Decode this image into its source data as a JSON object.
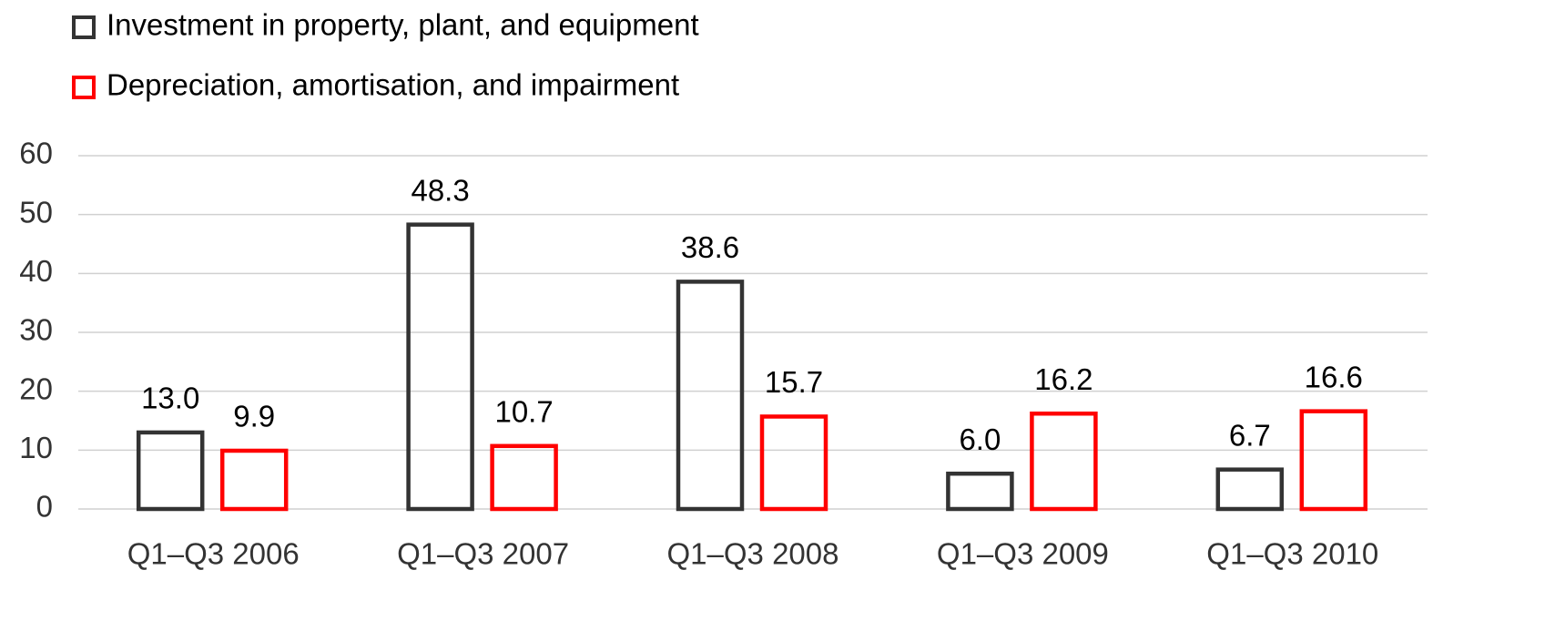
{
  "chart_data": {
    "type": "bar",
    "categories": [
      "Q1–Q3 2006",
      "Q1–Q3 2007",
      "Q1–Q3 2008",
      "Q1–Q3 2009",
      "Q1–Q3 2010"
    ],
    "series": [
      {
        "name": "Investment in property, plant, and equipment",
        "color": "#333333",
        "values": [
          13.0,
          48.3,
          38.6,
          6.0,
          6.7
        ],
        "value_labels": [
          "13.0",
          "48.3",
          "38.6",
          "6.0",
          "6.7"
        ]
      },
      {
        "name": "Depreciation, amortisation, and impairment",
        "color": "#ff0000",
        "values": [
          9.9,
          10.7,
          15.7,
          16.2,
          16.6
        ],
        "value_labels": [
          "9.9",
          "10.7",
          "15.7",
          "16.2",
          "16.6"
        ]
      }
    ],
    "ylim": [
      0,
      60
    ],
    "yticks": [
      0,
      10,
      20,
      30,
      40,
      50,
      60
    ],
    "grid": true,
    "legend": "top-left"
  }
}
